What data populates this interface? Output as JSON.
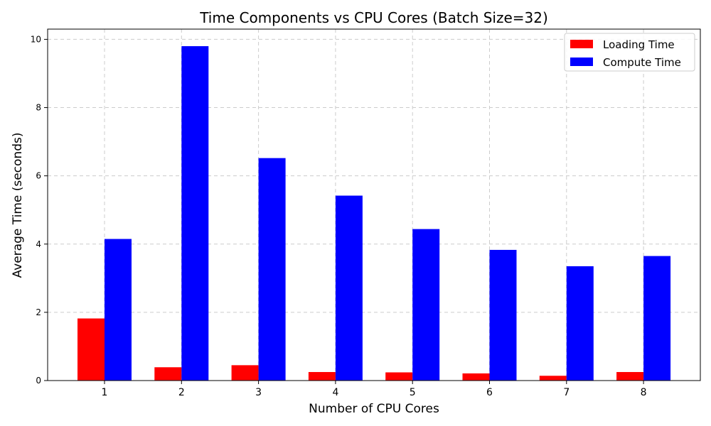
{
  "chart_data": {
    "type": "bar",
    "title": "Time Components vs CPU Cores (Batch Size=32)",
    "xlabel": "Number of CPU Cores",
    "ylabel": "Average Time (seconds)",
    "categories": [
      "1",
      "2",
      "3",
      "4",
      "5",
      "6",
      "7",
      "8"
    ],
    "yticks": [
      "0",
      "2",
      "4",
      "6",
      "8",
      "10"
    ],
    "ylim": [
      0,
      10.3
    ],
    "grid": true,
    "legend_position": "top-right",
    "series": [
      {
        "name": "Loading Time",
        "color": "#ff0000",
        "values": [
          1.82,
          0.39,
          0.45,
          0.25,
          0.24,
          0.21,
          0.14,
          0.25
        ]
      },
      {
        "name": "Compute Time",
        "color": "#0000ff",
        "values": [
          4.15,
          9.8,
          6.52,
          5.42,
          4.44,
          3.83,
          3.35,
          3.65
        ]
      }
    ]
  }
}
